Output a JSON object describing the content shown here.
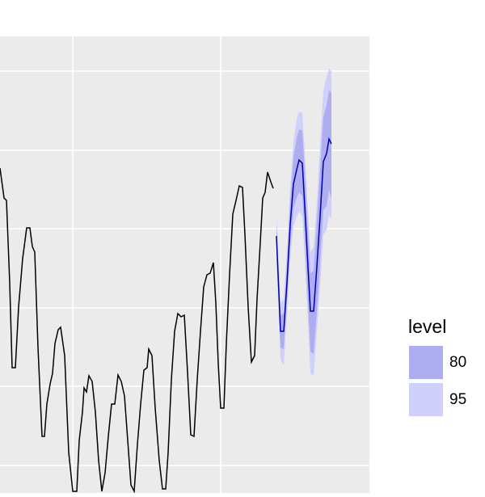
{
  "chart_data": {
    "type": "forecast",
    "xlim": [
      0,
      457
    ],
    "ylim": [
      0,
      565
    ],
    "x_gridlines": [
      90,
      273
    ],
    "y_gridlines": [
      34,
      132,
      229,
      327,
      424,
      522
    ],
    "background": "#ebebeb",
    "grid_color": "#ffffff",
    "series": [
      {
        "color": "#000000",
        "x": [
          0,
          5,
          8,
          12,
          15,
          19,
          23,
          28,
          33,
          37,
          40,
          43,
          47,
          52,
          55,
          58,
          62,
          65,
          68,
          72,
          75,
          80,
          85,
          90,
          95,
          98,
          102,
          104,
          107,
          110,
          114,
          118,
          122,
          126,
          130,
          134,
          138,
          142,
          146,
          150,
          154,
          158,
          162,
          166,
          170,
          174,
          178,
          182,
          184,
          188,
          192,
          197,
          201,
          205,
          208,
          212,
          216,
          220,
          224,
          228,
          232,
          236,
          240,
          244,
          248,
          252,
          256,
          260,
          264,
          267,
          270,
          273,
          277,
          280,
          284,
          288,
          292,
          296,
          300,
          303,
          307,
          311,
          315,
          318,
          322,
          325,
          328,
          331,
          335,
          338
        ],
        "values": [
          402,
          365,
          362,
          260,
          155,
          155,
          230,
          290,
          328,
          328,
          305,
          298,
          180,
          70,
          70,
          110,
          135,
          148,
          185,
          202,
          205,
          170,
          50,
          2,
          2,
          65,
          100,
          130,
          125,
          145,
          138,
          100,
          40,
          2,
          25,
          70,
          110,
          110,
          146,
          138,
          120,
          65,
          10,
          2,
          60,
          110,
          152,
          155,
          178,
          170,
          105,
          40,
          5,
          5,
          50,
          140,
          200,
          222,
          218,
          220,
          150,
          72,
          70,
          140,
          200,
          255,
          270,
          272,
          285,
          235,
          160,
          105,
          105,
          185,
          270,
          345,
          362,
          380,
          378,
          320,
          230,
          162,
          170,
          240,
          310,
          365,
          372,
          397,
          385,
          377
        ]
      },
      {
        "color": "#0000aa",
        "x": [
          342,
          347,
          351,
          355,
          359,
          363,
          367,
          370,
          374,
          377,
          381,
          384,
          388,
          392,
          396,
          400,
          404,
          407,
          410
        ],
        "values": [
          318,
          200,
          200,
          260,
          332,
          382,
          400,
          412,
          408,
          355,
          280,
          225,
          225,
          280,
          342,
          410,
          420,
          438,
          432
        ]
      }
    ],
    "intervals": [
      {
        "level": "80",
        "color": "#adadf0",
        "upper": [
          332,
          220,
          222,
          285,
          360,
          415,
          440,
          450,
          448,
          400,
          325,
          272,
          275,
          335,
          400,
          465,
          480,
          498,
          495
        ],
        "lower": [
          305,
          180,
          178,
          238,
          305,
          352,
          365,
          372,
          368,
          315,
          235,
          175,
          172,
          225,
          285,
          350,
          355,
          375,
          365
        ]
      },
      {
        "level": "95",
        "color": "#d0d0fa",
        "upper": [
          345,
          235,
          240,
          300,
          377,
          435,
          462,
          472,
          470,
          422,
          348,
          298,
          305,
          360,
          430,
          498,
          515,
          525,
          522
        ],
        "lower": [
          290,
          165,
          158,
          222,
          288,
          330,
          342,
          348,
          342,
          290,
          212,
          148,
          145,
          200,
          255,
          320,
          325,
          345,
          338
        ]
      }
    ],
    "legend_title": "level"
  }
}
